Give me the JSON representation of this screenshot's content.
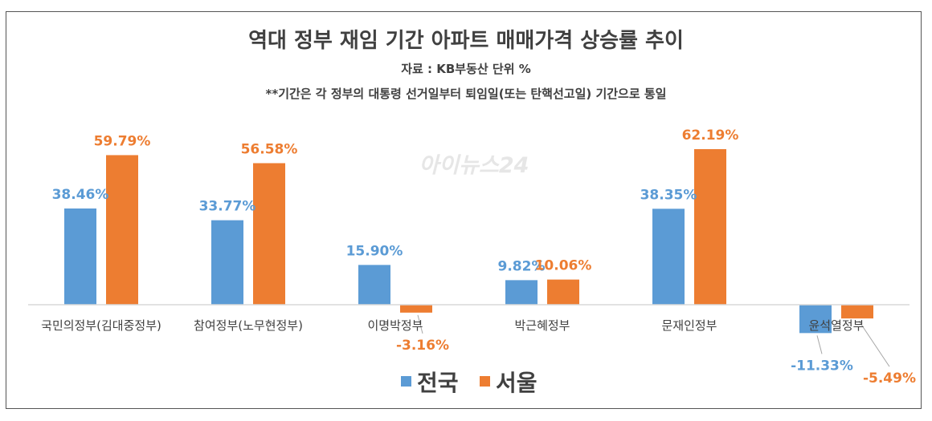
{
  "title": "역대 정부 재임 기간 아파트 매매가격 상승률 추이",
  "subtitle": "자료 : KB부동산   단위 %",
  "note": "**기간은 각 정부의 대통령 선거일부터 퇴임일(또는 탄핵선고일) 기간으로 통일",
  "watermark": "아이뉴스24",
  "colors": {
    "전국": "#5b9bd5",
    "서울": "#ed7d31"
  },
  "chart_data": {
    "type": "bar",
    "title": "역대 정부 재임 기간 아파트 매매가격 상승률 추이",
    "categories": [
      "국민의정부(김대중정부)",
      "참여정부(노무현정부)",
      "이명박정부",
      "박근혜정부",
      "문재인정부",
      "윤석열정부"
    ],
    "series": [
      {
        "name": "전국",
        "values": [
          38.46,
          33.77,
          15.9,
          9.82,
          38.35,
          -11.33
        ],
        "labels": [
          "38.46%",
          "33.77%",
          "15.90%",
          "9.82%",
          "38.35%",
          "-11.33%"
        ]
      },
      {
        "name": "서울",
        "values": [
          59.79,
          56.58,
          -3.16,
          10.06,
          62.19,
          -5.49
        ],
        "labels": [
          "59.79%",
          "56.58%",
          "-3.16%",
          "10.06%",
          "62.19%",
          "-5.49%"
        ]
      }
    ],
    "ylim": [
      -15,
      70
    ],
    "grid": false,
    "legend": "bottom-center"
  }
}
